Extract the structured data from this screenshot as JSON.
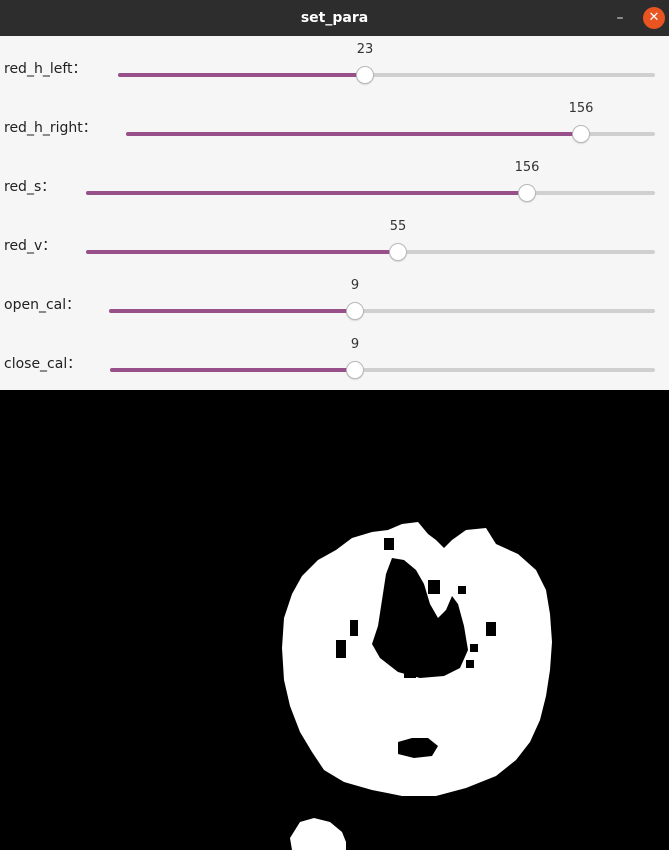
{
  "window": {
    "title": "set_para",
    "minimize_glyph": "–",
    "close_glyph": "✕",
    "close_color": "#e95420"
  },
  "sliders": [
    {
      "label": "red_h_left：",
      "value": "23",
      "fraction": 0.46
    },
    {
      "label": "red_h_right：",
      "value": "156",
      "fraction": 0.86
    },
    {
      "label": "red_s：",
      "value": "156",
      "fraction": 0.77
    },
    {
      "label": "red_v：",
      "value": "55",
      "fraction": 0.55
    },
    {
      "label": "open_cal：",
      "value": "9",
      "fraction": 0.45
    },
    {
      "label": "close_cal：",
      "value": "9",
      "fraction": 0.45
    }
  ],
  "colors": {
    "slider_fill": "#97508a",
    "slider_track": "#d0d0d0",
    "mask_foreground": "#ffffff",
    "mask_background": "#000000"
  }
}
